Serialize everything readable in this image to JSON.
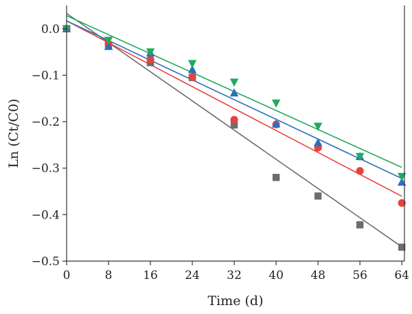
{
  "chart_data": {
    "type": "scatter",
    "xlabel": "Time (d)",
    "ylabel": "Ln (Ct/C0)",
    "xlim": [
      0,
      64.5
    ],
    "ylim": [
      -0.5,
      0.05
    ],
    "xticks": [
      0,
      8,
      16,
      24,
      32,
      40,
      48,
      56,
      64
    ],
    "yticks": [
      0.0,
      -0.1,
      -0.2,
      -0.3,
      -0.4,
      -0.5
    ],
    "ytick_labels": [
      "0.0",
      "−0.1",
      "−0.2",
      "−0.3",
      "−0.4",
      "−0.5"
    ],
    "grid": false,
    "legend": "none",
    "series": [
      {
        "marker": "square",
        "color": "#6d6d6d",
        "x": [
          0,
          8,
          16,
          24,
          32,
          40,
          48,
          56,
          64
        ],
        "y": [
          0.0,
          -0.035,
          -0.073,
          -0.105,
          -0.207,
          -0.32,
          -0.36,
          -0.422,
          -0.47
        ],
        "fit": {
          "slope": -0.00785,
          "intercept": 0.033
        }
      },
      {
        "marker": "circle",
        "color": "#e8423f",
        "x": [
          0,
          8,
          16,
          24,
          32,
          40,
          48,
          56,
          64
        ],
        "y": [
          0.0,
          -0.033,
          -0.066,
          -0.104,
          -0.196,
          -0.206,
          -0.256,
          -0.306,
          -0.375
        ],
        "fit": {
          "slope": -0.0059,
          "intercept": 0.017
        }
      },
      {
        "marker": "triangle-up",
        "color": "#2a6fbd",
        "x": [
          0,
          8,
          16,
          24,
          32,
          40,
          48,
          56,
          64
        ],
        "y": [
          0.0,
          -0.038,
          -0.052,
          -0.088,
          -0.138,
          -0.205,
          -0.245,
          -0.275,
          -0.33
        ],
        "fit": {
          "slope": -0.0053,
          "intercept": 0.017
        }
      },
      {
        "marker": "triangle-down",
        "color": "#22a95e",
        "x": [
          0,
          8,
          16,
          24,
          32,
          40,
          48,
          56,
          64
        ],
        "y": [
          0.0,
          -0.025,
          -0.05,
          -0.075,
          -0.115,
          -0.16,
          -0.21,
          -0.275,
          -0.318
        ],
        "fit": {
          "slope": -0.0051,
          "intercept": 0.028
        }
      }
    ]
  }
}
